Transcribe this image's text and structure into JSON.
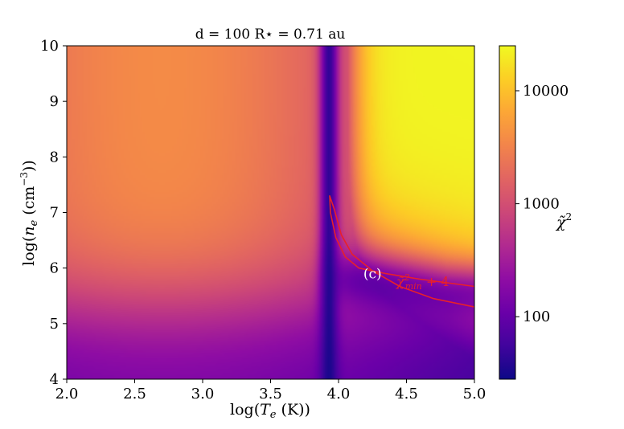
{
  "chart_data": {
    "type": "heatmap",
    "title": "d = 100 R⋆ = 0.71 au",
    "xlabel": "log(Te (K))",
    "ylabel": "log(ne (cm−3))",
    "xlim": [
      2.0,
      5.0
    ],
    "ylim": [
      4,
      10
    ],
    "x_ticks": [
      "2.0",
      "2.5",
      "3.0",
      "3.5",
      "4.0",
      "4.5",
      "5.0"
    ],
    "y_ticks": [
      "4",
      "5",
      "6",
      "7",
      "8",
      "9",
      "10"
    ],
    "colormap": "plasma",
    "colorbar": {
      "label": "χ̃²",
      "scale": "log",
      "range": [
        28,
        25000
      ],
      "ticks": [
        {
          "value": 100,
          "label": "100"
        },
        {
          "value": 1000,
          "label": "1000"
        },
        {
          "value": 10000,
          "label": "10000"
        }
      ]
    },
    "contour": {
      "label": "χ̃²min + 4",
      "color": "#e8202a",
      "path_points": [
        {
          "x": 5.0,
          "y": 5.67
        },
        {
          "x": 4.6,
          "y": 5.8
        },
        {
          "x": 4.35,
          "y": 5.9
        },
        {
          "x": 4.15,
          "y": 6.0
        },
        {
          "x": 4.05,
          "y": 6.2
        },
        {
          "x": 3.98,
          "y": 6.55
        },
        {
          "x": 3.94,
          "y": 7.0
        },
        {
          "x": 3.935,
          "y": 7.3
        },
        {
          "x": 3.97,
          "y": 7.05
        },
        {
          "x": 4.02,
          "y": 6.6
        },
        {
          "x": 4.1,
          "y": 6.25
        },
        {
          "x": 4.25,
          "y": 5.95
        },
        {
          "x": 4.45,
          "y": 5.67
        },
        {
          "x": 4.7,
          "y": 5.45
        },
        {
          "x": 5.0,
          "y": 5.3
        }
      ]
    },
    "annotations": [
      {
        "text": "(c)",
        "x": 4.25,
        "y": 5.9,
        "color": "#ffffff"
      }
    ]
  }
}
